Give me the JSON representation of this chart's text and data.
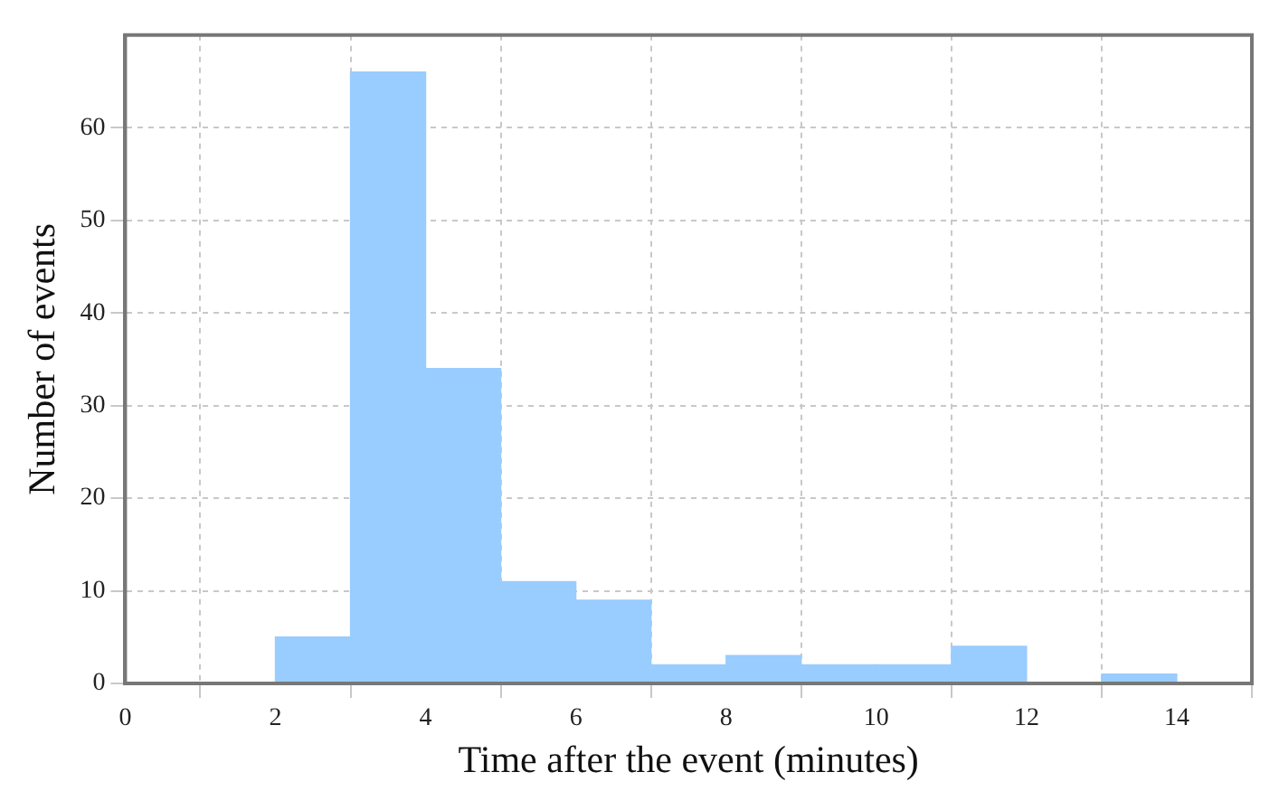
{
  "chart_data": {
    "type": "histogram",
    "xlabel": "Time after the event (minutes)",
    "ylabel": "Number of events",
    "bins": [
      0,
      1,
      2,
      3,
      4,
      5,
      6,
      7,
      8,
      9,
      10,
      11,
      12,
      13,
      14,
      15
    ],
    "values": [
      0,
      0,
      5,
      66,
      34,
      11,
      9,
      2,
      3,
      2,
      2,
      4,
      0,
      1,
      0
    ],
    "color": "#99ccff",
    "xlim": [
      0,
      15
    ],
    "xticks": [
      0,
      2,
      4,
      6,
      8,
      10,
      12,
      14
    ],
    "ylim": [
      0,
      70
    ],
    "yticks": [
      0,
      10,
      20,
      30,
      40,
      50,
      60
    ],
    "grid": true
  }
}
